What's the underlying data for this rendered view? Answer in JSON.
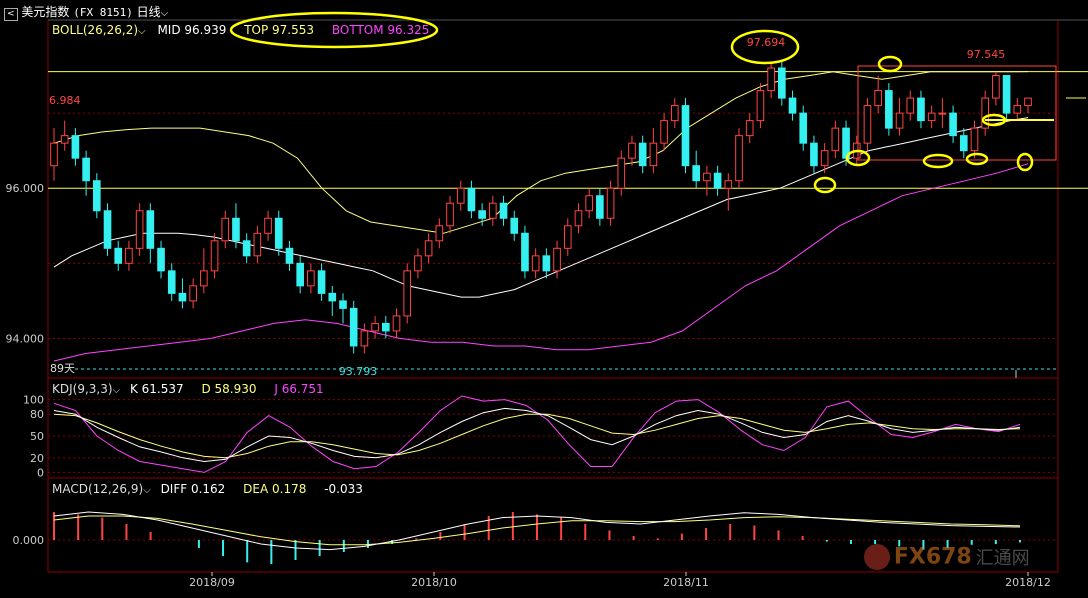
{
  "window": {
    "back_icon": "back-arrow-icon",
    "instrument_name": "美元指数",
    "instrument_code": "(FX 8151)",
    "period": "日线",
    "period_dropdown_icon": "chevron-down-icon"
  },
  "indicators": {
    "boll": {
      "label": "BOLL(26,26,2)",
      "mid_label": "MID 96.939",
      "top_label": "TOP 97.553",
      "bottom_label": "BOTTOM 96.325"
    },
    "kdj": {
      "label": "KDJ(9,3,3)",
      "k_label": "K 61.537",
      "d_label": "D 58.930",
      "j_label": "J 66.751"
    },
    "macd": {
      "label": "MACD(12,26,9)",
      "diff_label": "DIFF 0.162",
      "dea_label": "DEA 0.178",
      "macd_value": "-0.033"
    }
  },
  "annotations": {
    "high_label": "97.694",
    "recent_high_label": "97.545",
    "left_label": "6.984",
    "low_label": "93.793",
    "days_label": "89天"
  },
  "watermark": {
    "text": "FX678",
    "cn_text": "汇通网"
  },
  "colors": {
    "up": "#ff4444",
    "down": "#34f0f0",
    "mid": "#ffffff",
    "upper": "#ffff80",
    "lower": "#ff44ff",
    "k": "#ffffff",
    "d": "#ffff80",
    "j": "#ff44ff",
    "annotation": "#ffff00",
    "grid": "#8b0000"
  },
  "chart_data": [
    {
      "type": "candlestick",
      "x_ticks": [
        "2018/09",
        "2018/10",
        "2018/11",
        "2018/12"
      ],
      "y_ticks": [
        "96.000",
        "94.000"
      ],
      "ylim": [
        93.5,
        98.0
      ],
      "horizontal_lines": [
        97.553,
        96.0
      ],
      "candles": [
        [
          96.3,
          96.6,
          96.1,
          96.8
        ],
        [
          96.6,
          96.7,
          96.5,
          96.9
        ],
        [
          96.7,
          96.4,
          96.3,
          96.8
        ],
        [
          96.4,
          96.1,
          95.9,
          96.5
        ],
        [
          96.1,
          95.7,
          95.6,
          96.2
        ],
        [
          95.7,
          95.2,
          95.1,
          95.8
        ],
        [
          95.2,
          95.0,
          94.9,
          95.3
        ],
        [
          95.0,
          95.2,
          94.9,
          95.3
        ],
        [
          95.2,
          95.7,
          95.1,
          95.8
        ],
        [
          95.7,
          95.2,
          95.0,
          95.8
        ],
        [
          95.2,
          94.9,
          94.8,
          95.3
        ],
        [
          94.9,
          94.6,
          94.5,
          95.0
        ],
        [
          94.6,
          94.5,
          94.4,
          94.8
        ],
        [
          94.5,
          94.7,
          94.4,
          94.8
        ],
        [
          94.7,
          94.9,
          94.6,
          95.2
        ],
        [
          94.9,
          95.3,
          94.8,
          95.4
        ],
        [
          95.3,
          95.6,
          95.2,
          95.7
        ],
        [
          95.6,
          95.3,
          95.2,
          95.8
        ],
        [
          95.3,
          95.1,
          95.0,
          95.4
        ],
        [
          95.1,
          95.4,
          95.0,
          95.5
        ],
        [
          95.4,
          95.6,
          95.3,
          95.7
        ],
        [
          95.6,
          95.2,
          95.1,
          95.7
        ],
        [
          95.2,
          95.0,
          94.9,
          95.3
        ],
        [
          95.0,
          94.7,
          94.6,
          95.1
        ],
        [
          94.7,
          94.9,
          94.6,
          95.0
        ],
        [
          94.9,
          94.6,
          94.5,
          95.0
        ],
        [
          94.6,
          94.5,
          94.3,
          94.7
        ],
        [
          94.5,
          94.4,
          94.2,
          94.6
        ],
        [
          94.4,
          93.9,
          93.8,
          94.5
        ],
        [
          93.9,
          94.1,
          93.8,
          94.2
        ],
        [
          94.1,
          94.2,
          94.0,
          94.3
        ],
        [
          94.2,
          94.1,
          94.0,
          94.3
        ],
        [
          94.1,
          94.3,
          94.0,
          94.4
        ],
        [
          94.3,
          94.9,
          94.2,
          95.0
        ],
        [
          94.9,
          95.1,
          94.8,
          95.2
        ],
        [
          95.1,
          95.3,
          95.0,
          95.4
        ],
        [
          95.3,
          95.5,
          95.2,
          95.6
        ],
        [
          95.5,
          95.8,
          95.4,
          95.9
        ],
        [
          95.8,
          96.0,
          95.7,
          96.1
        ],
        [
          96.0,
          95.7,
          95.6,
          96.1
        ],
        [
          95.7,
          95.6,
          95.5,
          95.8
        ],
        [
          95.6,
          95.8,
          95.5,
          95.9
        ],
        [
          95.8,
          95.6,
          95.5,
          95.9
        ],
        [
          95.6,
          95.4,
          95.3,
          95.7
        ],
        [
          95.4,
          94.9,
          94.8,
          95.5
        ],
        [
          94.9,
          95.1,
          94.8,
          95.2
        ],
        [
          95.1,
          94.9,
          94.8,
          95.2
        ],
        [
          94.9,
          95.2,
          94.8,
          95.3
        ],
        [
          95.2,
          95.5,
          95.1,
          95.6
        ],
        [
          95.5,
          95.7,
          95.4,
          95.8
        ],
        [
          95.7,
          95.9,
          95.6,
          96.0
        ],
        [
          95.9,
          95.6,
          95.5,
          96.0
        ],
        [
          95.6,
          96.0,
          95.5,
          96.1
        ],
        [
          96.0,
          96.4,
          95.9,
          96.5
        ],
        [
          96.4,
          96.6,
          96.3,
          96.7
        ],
        [
          96.6,
          96.3,
          96.2,
          96.7
        ],
        [
          96.3,
          96.6,
          96.2,
          96.8
        ],
        [
          96.6,
          96.9,
          96.5,
          97.0
        ],
        [
          96.9,
          97.1,
          96.8,
          97.2
        ],
        [
          97.1,
          96.3,
          96.2,
          97.2
        ],
        [
          96.3,
          96.1,
          96.0,
          96.5
        ],
        [
          96.1,
          96.2,
          95.9,
          96.3
        ],
        [
          96.2,
          96.0,
          95.9,
          96.3
        ],
        [
          96.0,
          96.1,
          95.7,
          96.2
        ],
        [
          96.1,
          96.7,
          96.0,
          96.8
        ],
        [
          96.7,
          96.9,
          96.6,
          97.0
        ],
        [
          96.9,
          97.3,
          96.8,
          97.4
        ],
        [
          97.3,
          97.6,
          97.2,
          97.69
        ],
        [
          97.6,
          97.2,
          97.1,
          97.7
        ],
        [
          97.2,
          97.0,
          96.9,
          97.3
        ],
        [
          97.0,
          96.6,
          96.5,
          97.1
        ],
        [
          96.6,
          96.3,
          96.2,
          96.7
        ],
        [
          96.3,
          96.5,
          96.2,
          96.6
        ],
        [
          96.5,
          96.8,
          96.4,
          96.9
        ],
        [
          96.8,
          96.4,
          96.3,
          96.9
        ],
        [
          96.4,
          96.6,
          96.3,
          96.7
        ],
        [
          96.6,
          97.1,
          96.5,
          97.2
        ],
        [
          97.1,
          97.3,
          97.0,
          97.5
        ],
        [
          97.3,
          96.8,
          96.7,
          97.4
        ],
        [
          96.8,
          97.0,
          96.7,
          97.2
        ],
        [
          97.0,
          97.2,
          96.9,
          97.3
        ],
        [
          97.2,
          96.9,
          96.8,
          97.3
        ],
        [
          96.9,
          97.0,
          96.8,
          97.1
        ],
        [
          97.0,
          97.0,
          96.8,
          97.2
        ],
        [
          97.0,
          96.7,
          96.6,
          97.1
        ],
        [
          96.7,
          96.5,
          96.4,
          96.8
        ],
        [
          96.5,
          96.8,
          96.4,
          96.9
        ],
        [
          96.8,
          97.2,
          96.7,
          97.3
        ],
        [
          97.2,
          97.5,
          97.1,
          97.55
        ],
        [
          97.5,
          97.0,
          96.9,
          97.5
        ],
        [
          97.0,
          97.1,
          96.9,
          97.2
        ],
        [
          97.1,
          97.2,
          97.0,
          97.2
        ]
      ],
      "series": [
        {
          "values_mid": [
            94.95,
            95.1,
            95.2,
            95.3,
            95.35,
            95.4,
            95.4,
            95.4,
            95.38,
            95.35,
            95.3,
            95.25,
            95.2,
            95.15,
            95.1,
            95.05,
            95.0,
            94.95,
            94.9,
            94.8,
            94.7,
            94.65,
            94.6,
            94.55,
            94.55,
            94.6,
            94.65,
            94.75,
            94.85,
            94.95,
            95.05,
            95.15,
            95.25,
            95.35,
            95.45,
            95.55,
            95.65,
            95.75,
            95.85,
            95.9,
            95.95,
            96.0,
            96.1,
            96.2,
            96.3,
            96.4,
            96.5,
            96.55,
            96.6,
            96.65,
            96.7,
            96.75,
            96.8,
            96.85,
            96.9,
            96.94
          ]
        },
        {
          "values_upper": [
            96.6,
            96.7,
            96.75,
            96.78,
            96.8,
            96.8,
            96.8,
            96.75,
            96.7,
            96.6,
            96.4,
            96.0,
            95.7,
            95.55,
            95.5,
            95.45,
            95.4,
            95.5,
            95.6,
            95.9,
            96.1,
            96.2,
            96.25,
            96.3,
            96.35,
            96.5,
            96.8,
            97.0,
            97.2,
            97.35,
            97.45,
            97.5,
            97.55,
            97.5,
            97.45,
            97.5,
            97.55,
            97.55,
            97.55,
            97.55,
            97.553
          ]
        },
        {
          "values_lower": [
            93.7,
            93.8,
            93.85,
            93.9,
            93.95,
            94.0,
            94.1,
            94.2,
            94.25,
            94.2,
            94.1,
            94.0,
            93.95,
            93.95,
            93.9,
            93.9,
            93.85,
            93.85,
            93.9,
            93.95,
            94.1,
            94.4,
            94.7,
            94.9,
            95.2,
            95.5,
            95.7,
            95.9,
            96.0,
            96.1,
            96.2,
            96.325
          ]
        }
      ]
    },
    {
      "type": "line",
      "name": "KDJ(9,3,3)",
      "y_ticks": [
        "100",
        "80",
        "50",
        "20",
        "0"
      ],
      "ylim": [
        -5,
        105
      ],
      "series": [
        {
          "name": "K",
          "values": [
            85,
            80,
            62,
            48,
            35,
            28,
            20,
            15,
            18,
            35,
            50,
            48,
            40,
            30,
            22,
            20,
            25,
            38,
            55,
            70,
            82,
            88,
            85,
            78,
            62,
            45,
            38,
            50,
            66,
            78,
            85,
            80,
            68,
            55,
            48,
            52,
            70,
            78,
            70,
            60,
            55,
            58,
            62,
            60,
            58,
            62
          ]
        },
        {
          "name": "D",
          "values": [
            80,
            78,
            68,
            56,
            45,
            36,
            28,
            22,
            20,
            26,
            36,
            42,
            42,
            38,
            32,
            26,
            24,
            30,
            40,
            52,
            64,
            74,
            80,
            80,
            74,
            64,
            54,
            52,
            58,
            66,
            74,
            78,
            74,
            66,
            58,
            55,
            60,
            66,
            68,
            64,
            60,
            59,
            60,
            60,
            59,
            60
          ]
        },
        {
          "name": "J",
          "values": [
            95,
            85,
            50,
            30,
            15,
            10,
            5,
            0,
            15,
            55,
            78,
            62,
            36,
            15,
            5,
            8,
            27,
            55,
            85,
            105,
            98,
            100,
            92,
            72,
            38,
            8,
            8,
            48,
            82,
            98,
            100,
            82,
            58,
            38,
            30,
            48,
            90,
            98,
            74,
            52,
            48,
            56,
            66,
            60,
            56,
            66
          ]
        }
      ]
    },
    {
      "type": "bar",
      "name": "MACD(12,26,9)",
      "y_ticks": [
        "0.000"
      ],
      "histogram": [
        0.35,
        0.32,
        0.28,
        0.2,
        0.1,
        0.0,
        -0.1,
        -0.2,
        -0.28,
        -0.3,
        -0.25,
        -0.2,
        -0.15,
        -0.1,
        -0.05,
        0.02,
        0.1,
        0.2,
        0.3,
        0.35,
        0.32,
        0.28,
        0.2,
        0.12,
        0.05,
        0.02,
        0.08,
        0.15,
        0.2,
        0.18,
        0.12,
        0.05,
        -0.02,
        -0.05,
        -0.05,
        -0.08,
        -0.12,
        -0.1,
        -0.06,
        -0.05,
        -0.03
      ],
      "series": [
        {
          "name": "DIFF",
          "values": [
            0.3,
            0.35,
            0.32,
            0.25,
            0.15,
            0.05,
            -0.05,
            -0.1,
            -0.12,
            -0.08,
            0.0,
            0.1,
            0.2,
            0.28,
            0.3,
            0.28,
            0.22,
            0.2,
            0.25,
            0.3,
            0.34,
            0.32,
            0.28,
            0.25,
            0.22,
            0.2,
            0.18,
            0.17,
            0.162
          ]
        },
        {
          "name": "DEA",
          "values": [
            0.25,
            0.3,
            0.3,
            0.27,
            0.2,
            0.12,
            0.04,
            -0.02,
            -0.06,
            -0.06,
            -0.03,
            0.02,
            0.08,
            0.15,
            0.2,
            0.24,
            0.24,
            0.23,
            0.23,
            0.25,
            0.28,
            0.29,
            0.28,
            0.26,
            0.24,
            0.22,
            0.2,
            0.19,
            0.178
          ]
        }
      ]
    }
  ]
}
